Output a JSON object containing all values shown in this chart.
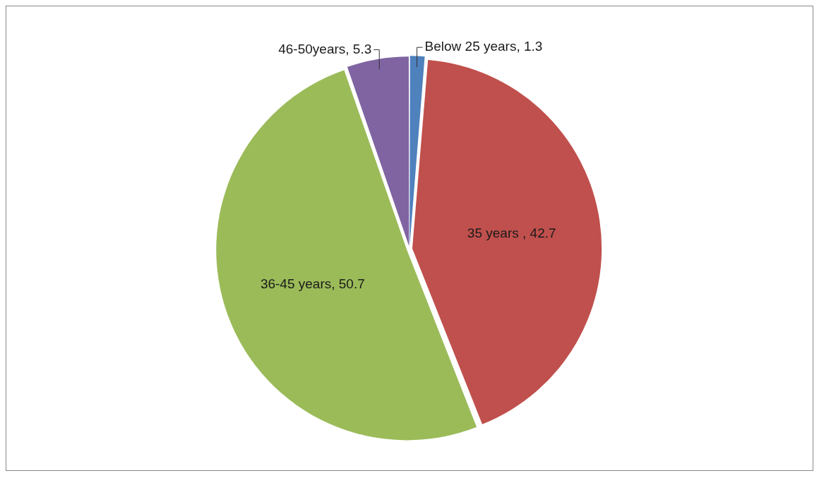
{
  "chart_data": {
    "type": "pie",
    "categories": [
      "Below 25 years",
      "35 years ",
      "36-45 years",
      "46-50years"
    ],
    "values": [
      1.3,
      42.7,
      50.7,
      5.3
    ],
    "value_labels": [
      ", 1.3",
      ", 42.7",
      ", 50.7",
      ", 5.3"
    ],
    "colors": [
      "#4f81bd",
      "#c0504d",
      "#9bbb59",
      "#8064a2"
    ],
    "legend": false
  }
}
